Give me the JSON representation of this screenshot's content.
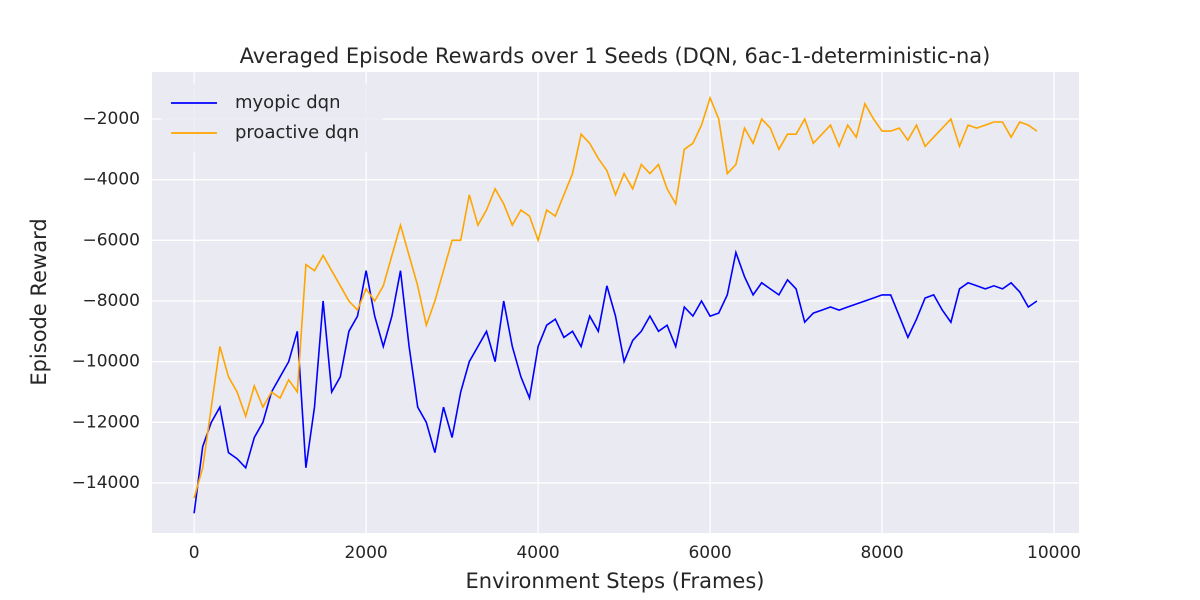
{
  "chart_data": {
    "type": "line",
    "title": "Averaged Episode Rewards over 1 Seeds (DQN, 6ac-1-deterministic-na)",
    "x_label": "Environment Steps (Frames)",
    "y_label": "Episode Reward",
    "legend": "upper left",
    "grid": true,
    "xlim": [
      -490,
      10290
    ],
    "ylim": [
      -15650,
      -450
    ],
    "xticks": [
      0,
      2000,
      4000,
      6000,
      8000,
      10000
    ],
    "yticks": [
      {
        "value": -14000,
        "label": "−14000"
      },
      {
        "value": -12000,
        "label": "−12000"
      },
      {
        "value": -10000,
        "label": "−10000"
      },
      {
        "value": -8000,
        "label": "−8000"
      },
      {
        "value": -6000,
        "label": "−6000"
      },
      {
        "value": -4000,
        "label": "−4000"
      },
      {
        "value": -2000,
        "label": "−2000"
      }
    ],
    "x": [
      0,
      100,
      200,
      300,
      400,
      500,
      600,
      700,
      800,
      900,
      1000,
      1100,
      1200,
      1300,
      1400,
      1500,
      1600,
      1700,
      1800,
      1900,
      2000,
      2100,
      2200,
      2300,
      2400,
      2500,
      2600,
      2700,
      2800,
      2900,
      3000,
      3100,
      3200,
      3300,
      3400,
      3500,
      3600,
      3700,
      3800,
      3900,
      4000,
      4100,
      4200,
      4300,
      4400,
      4500,
      4600,
      4700,
      4800,
      4900,
      5000,
      5100,
      5200,
      5300,
      5400,
      5500,
      5600,
      5700,
      5800,
      5900,
      6000,
      6100,
      6200,
      6300,
      6400,
      6500,
      6600,
      6700,
      6800,
      6900,
      7000,
      7100,
      7200,
      7300,
      7400,
      7500,
      7600,
      7700,
      7800,
      7900,
      8000,
      8100,
      8200,
      8300,
      8400,
      8500,
      8600,
      8700,
      8800,
      8900,
      9000,
      9100,
      9200,
      9300,
      9400,
      9500,
      9600,
      9700,
      9800
    ],
    "series": [
      {
        "name": "myopic dqn",
        "color": "#0000ff",
        "values": [
          -15000,
          -12800,
          -12000,
          -11500,
          -13000,
          -13200,
          -13500,
          -12500,
          -12000,
          -11000,
          -10500,
          -10000,
          -9000,
          -13500,
          -11500,
          -8000,
          -11000,
          -10500,
          -9000,
          -8500,
          -7000,
          -8500,
          -9500,
          -8500,
          -7000,
          -9500,
          -11500,
          -12000,
          -13000,
          -11500,
          -12500,
          -11000,
          -10000,
          -9500,
          -9000,
          -10000,
          -8000,
          -9500,
          -10500,
          -11200,
          -9500,
          -8800,
          -8600,
          -9200,
          -9000,
          -9500,
          -8500,
          -9000,
          -7500,
          -8500,
          -10000,
          -9300,
          -9000,
          -8500,
          -9000,
          -8800,
          -9500,
          -8200,
          -8500,
          -8000,
          -8500,
          -8400,
          -7800,
          -6400,
          -7200,
          -7800,
          -7400,
          -7600,
          -7800,
          -7300,
          -7600,
          -8700,
          -8400,
          -8300,
          -8200,
          -8300,
          -8200,
          -8100,
          -8000,
          -7900,
          -7800,
          -7800,
          -8500,
          -9200,
          -8600,
          -7900,
          -7800,
          -8300,
          -8700,
          -7600,
          -7400,
          -7500,
          -7600,
          -7500,
          -7600,
          -7400,
          -7700,
          -8200,
          -8000
        ]
      },
      {
        "name": "proactive dqn",
        "color": "#ffa500",
        "values": [
          -14500,
          -13500,
          -11500,
          -9500,
          -10500,
          -11000,
          -11800,
          -10800,
          -11500,
          -11000,
          -11200,
          -10600,
          -11000,
          -6800,
          -7000,
          -6500,
          -7000,
          -7500,
          -8000,
          -8300,
          -7600,
          -8000,
          -7500,
          -6500,
          -5500,
          -6500,
          -7500,
          -8800,
          -8000,
          -7000,
          -6000,
          -6000,
          -4500,
          -5500,
          -5000,
          -4300,
          -4800,
          -5500,
          -5000,
          -5200,
          -6000,
          -5000,
          -5200,
          -4500,
          -3800,
          -2500,
          -2800,
          -3300,
          -3700,
          -4500,
          -3800,
          -4300,
          -3500,
          -3800,
          -3500,
          -4300,
          -4800,
          -3000,
          -2800,
          -2200,
          -1300,
          -2000,
          -3800,
          -3500,
          -2300,
          -2800,
          -2000,
          -2300,
          -3000,
          -2500,
          -2500,
          -2000,
          -2800,
          -2500,
          -2200,
          -2900,
          -2200,
          -2600,
          -1500,
          -2000,
          -2400,
          -2400,
          -2300,
          -2700,
          -2200,
          -2900,
          -2600,
          -2300,
          -2000,
          -2900,
          -2200,
          -2300,
          -2200,
          -2100,
          -2100,
          -2600,
          -2100,
          -2200,
          -2400
        ]
      }
    ]
  }
}
